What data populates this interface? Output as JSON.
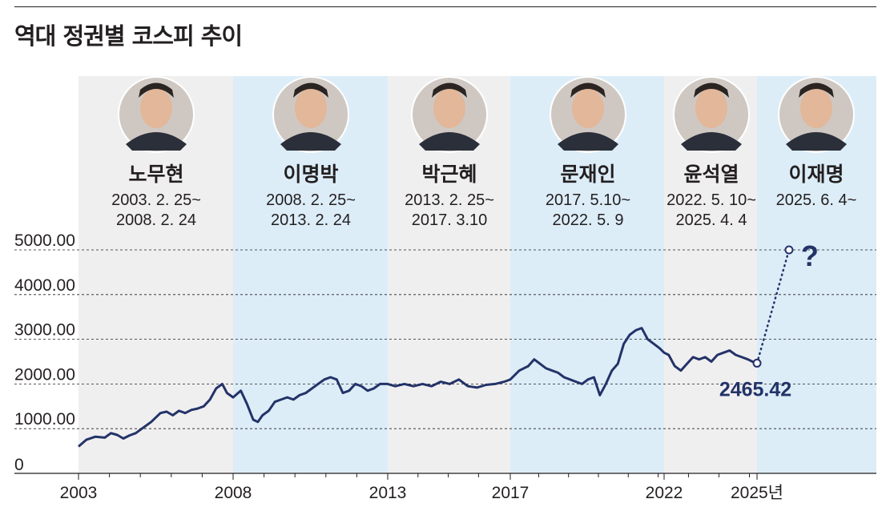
{
  "title": "역대 정권별 코스피 추이",
  "colors": {
    "band_even": "#f0eff0",
    "band_odd": "#dcedf8",
    "line": "#233368",
    "grid": "#231f20",
    "text": "#231f20"
  },
  "presidents": [
    {
      "name": "노무현",
      "term_start": "2003. 2. 25~",
      "term_end": "2008. 2. 24",
      "photo": "portrait-icon"
    },
    {
      "name": "이명박",
      "term_start": "2008. 2. 25~",
      "term_end": "2013. 2. 24",
      "photo": "portrait-icon"
    },
    {
      "name": "박근혜",
      "term_start": "2013. 2. 25~",
      "term_end": "2017. 3.10",
      "photo": "portrait-icon"
    },
    {
      "name": "문재인",
      "term_start": "2017. 5.10~",
      "term_end": "2022. 5. 9",
      "photo": "portrait-icon"
    },
    {
      "name": "윤석열",
      "term_start": "2022. 5. 10~",
      "term_end": "2025. 4. 4",
      "photo": "portrait-icon"
    },
    {
      "name": "이재명",
      "term_start": "2025. 6. 4~",
      "term_end": "",
      "photo": "portrait-icon"
    }
  ],
  "chart_data": {
    "type": "line",
    "ylim": [
      0,
      5000
    ],
    "y_ticks": [
      0,
      1000,
      2000,
      3000,
      4000,
      5000
    ],
    "y_tick_labels": [
      "0",
      "1000.00",
      "2000.00",
      "3000.00",
      "4000.00",
      "5000.00"
    ],
    "x_ticks": [
      2003.15,
      2008.15,
      2013.15,
      2017.2,
      2022.35,
      2025.4
    ],
    "x_tick_labels": [
      "2003",
      "2008",
      "2013",
      "2017",
      "2022",
      "2025년"
    ],
    "grid": true,
    "series": [
      {
        "x": [
          2003.15,
          2003.4,
          2003.7,
          2004.0,
          2004.2,
          2004.4,
          2004.6,
          2004.8,
          2005.0,
          2005.2,
          2005.5,
          2005.8,
          2006.0,
          2006.2,
          2006.4,
          2006.6,
          2006.8,
          2007.0,
          2007.2,
          2007.4,
          2007.6,
          2007.8,
          2007.95,
          2008.15,
          2008.4,
          2008.6,
          2008.8,
          2008.95,
          2009.1,
          2009.3,
          2009.5,
          2009.7,
          2009.9,
          2010.1,
          2010.3,
          2010.5,
          2010.7,
          2010.9,
          2011.1,
          2011.3,
          2011.5,
          2011.7,
          2011.9,
          2012.1,
          2012.3,
          2012.5,
          2012.7,
          2012.9,
          2013.15,
          2013.4,
          2013.7,
          2014.0,
          2014.3,
          2014.6,
          2014.9,
          2015.2,
          2015.5,
          2015.8,
          2016.1,
          2016.4,
          2016.7,
          2017.0,
          2017.2,
          2017.5,
          2017.8,
          2018.0,
          2018.2,
          2018.4,
          2018.6,
          2018.8,
          2019.0,
          2019.2,
          2019.4,
          2019.6,
          2019.8,
          2020.0,
          2020.2,
          2020.4,
          2020.6,
          2020.8,
          2021.0,
          2021.2,
          2021.4,
          2021.6,
          2021.8,
          2022.0,
          2022.2,
          2022.35,
          2022.5,
          2022.7,
          2022.9,
          2023.1,
          2023.3,
          2023.5,
          2023.7,
          2023.9,
          2024.1,
          2024.3,
          2024.5,
          2024.7,
          2024.9,
          2025.1,
          2025.25,
          2025.4
        ],
        "values": [
          600,
          750,
          820,
          800,
          900,
          860,
          780,
          850,
          900,
          1000,
          1150,
          1350,
          1380,
          1300,
          1400,
          1350,
          1420,
          1450,
          1500,
          1650,
          1900,
          2000,
          1800,
          1700,
          1850,
          1550,
          1200,
          1150,
          1300,
          1400,
          1600,
          1650,
          1700,
          1650,
          1750,
          1800,
          1900,
          2000,
          2100,
          2150,
          2100,
          1800,
          1850,
          2000,
          1950,
          1850,
          1900,
          2000,
          2000,
          1950,
          2000,
          1950,
          2000,
          1950,
          2050,
          2000,
          2100,
          1950,
          1920,
          1980,
          2000,
          2050,
          2100,
          2300,
          2400,
          2550,
          2450,
          2350,
          2300,
          2250,
          2150,
          2100,
          2050,
          2000,
          2100,
          2150,
          1750,
          2000,
          2300,
          2450,
          2900,
          3100,
          3200,
          3250,
          3000,
          2900,
          2800,
          2700,
          2650,
          2400,
          2300,
          2450,
          2600,
          2550,
          2600,
          2500,
          2650,
          2700,
          2750,
          2650,
          2600,
          2550,
          2500,
          2465.42
        ]
      },
      {
        "x": [
          2025.4,
          2026.45
        ],
        "values": [
          2465.42,
          5000
        ],
        "style": "dotted-projection"
      }
    ],
    "annotations": [
      {
        "text": "2465.42",
        "x": 2025.4,
        "y": 2465.42
      },
      {
        "text": "?",
        "x": 2026.45,
        "y": 5000
      }
    ]
  }
}
